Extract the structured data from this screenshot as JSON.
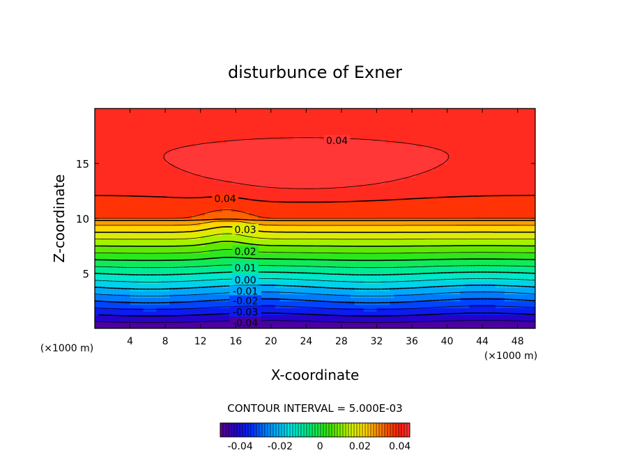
{
  "chart_data": {
    "type": "contour",
    "title": "disturbunce of Exner",
    "xlabel": "X-coordinate",
    "ylabel": "Z-coordinate",
    "x_unit": "(×1000 m)",
    "x_unit_right": "(×1000 m)",
    "xlim": [
      0,
      50
    ],
    "ylim": [
      0,
      20
    ],
    "x_ticks": [
      4,
      8,
      12,
      16,
      20,
      24,
      28,
      32,
      36,
      40,
      44,
      48
    ],
    "y_ticks": [
      5,
      10,
      15
    ],
    "contour_interval_text": "CONTOUR INTERVAL = 5.000E-03",
    "contour_interval": 0.005,
    "value_range": [
      -0.05,
      0.045
    ],
    "grid": false,
    "contour_labels": [
      {
        "text": "0.04",
        "x": 27.5,
        "z": 17.1
      },
      {
        "text": "0.04",
        "x": 14.8,
        "z": 11.8
      },
      {
        "text": "0.03",
        "x": 17.1,
        "z": 9.0
      },
      {
        "text": "0.02",
        "x": 17.1,
        "z": 7.0
      },
      {
        "text": "0.01",
        "x": 17.1,
        "z": 5.5
      },
      {
        "text": "0.00",
        "x": 17.1,
        "z": 4.4
      },
      {
        "text": "-0.01",
        "x": 17.1,
        "z": 3.4
      },
      {
        "text": "-0.02",
        "x": 17.1,
        "z": 2.5
      },
      {
        "text": "-0.03",
        "x": 17.1,
        "z": 1.5
      },
      {
        "text": "-0.04",
        "x": 17.1,
        "z": 0.5
      }
    ],
    "colorbar": {
      "ticks": [
        "-0.04",
        "-0.02",
        "0",
        "0.02",
        "0.04"
      ],
      "tick_values": [
        -0.04,
        -0.02,
        0,
        0.02,
        0.04
      ],
      "min": -0.05,
      "max": 0.045
    }
  }
}
